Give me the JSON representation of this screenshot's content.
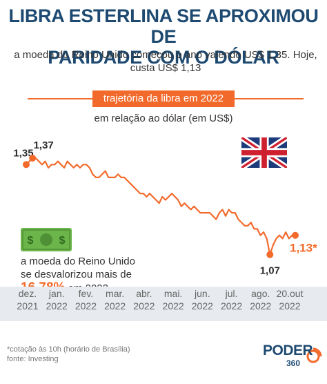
{
  "header": {
    "title_line1": "LIBRA ESTERLINA SE APROXIMOU DE",
    "title_line2": "PARIDADE COM O DÓLAR",
    "subtitle_line1": "a moeda do Reino Unido começou o ano valendo US$ 1,35. Hoje,",
    "subtitle_line2": "custa US$ 1,13"
  },
  "chart_banner": "trajetória da libra em 2022",
  "unit_label": "em relação ao dólar (em US$)",
  "note": {
    "line1": "a moeda do Reino Unido",
    "line2": "se desvalorizou mais de",
    "pct": "16,78%",
    "suffix": " em 2022"
  },
  "footer": {
    "footnote": "*cotação às 10h (horário de Brasília)",
    "source": "fonte: Investing"
  },
  "logo": {
    "brand": "PODER",
    "number": "360"
  },
  "icons": [
    "uk-flag-icon",
    "dollar-bill-icon"
  ],
  "colors": {
    "accent": "#f26a2b",
    "title": "#1e4a72",
    "axis_band": "#e7eaee"
  },
  "chart_data": {
    "type": "line",
    "title": "trajetória da libra em 2022",
    "ylabel": "em relação ao dólar (em US$)",
    "x_ticks": [
      [
        "dez.",
        "2021"
      ],
      [
        "jan.",
        "2022"
      ],
      [
        "fev.",
        "2022"
      ],
      [
        "mar.",
        "2022"
      ],
      [
        "abr.",
        "2022"
      ],
      [
        "mai.",
        "2022"
      ],
      [
        "jun.",
        "2022"
      ],
      [
        "jul.",
        "2022"
      ],
      [
        "ago.",
        "2022"
      ],
      [
        "20.out",
        "2022"
      ]
    ],
    "ylim": [
      1.05,
      1.4
    ],
    "values": [
      1.35,
      1.36,
      1.37,
      1.37,
      1.36,
      1.35,
      1.36,
      1.34,
      1.35,
      1.35,
      1.36,
      1.35,
      1.34,
      1.36,
      1.35,
      1.34,
      1.35,
      1.34,
      1.35,
      1.35,
      1.34,
      1.32,
      1.31,
      1.31,
      1.32,
      1.33,
      1.31,
      1.31,
      1.31,
      1.32,
      1.31,
      1.31,
      1.3,
      1.29,
      1.28,
      1.27,
      1.26,
      1.26,
      1.25,
      1.26,
      1.25,
      1.24,
      1.23,
      1.25,
      1.24,
      1.25,
      1.26,
      1.25,
      1.24,
      1.22,
      1.23,
      1.22,
      1.21,
      1.22,
      1.21,
      1.2,
      1.2,
      1.2,
      1.2,
      1.19,
      1.18,
      1.2,
      1.21,
      1.19,
      1.21,
      1.2,
      1.2,
      1.18,
      1.17,
      1.16,
      1.16,
      1.17,
      1.15,
      1.15,
      1.13,
      1.14,
      1.12,
      1.07,
      1.1,
      1.12,
      1.13,
      1.12,
      1.14,
      1.12,
      1.13,
      1.13
    ],
    "highlights": [
      {
        "index": 0,
        "label": "1,35"
      },
      {
        "index": 2,
        "label": "1,37"
      },
      {
        "index": 77,
        "label": "1,07"
      },
      {
        "index": 85,
        "label": "1,13*"
      }
    ]
  }
}
